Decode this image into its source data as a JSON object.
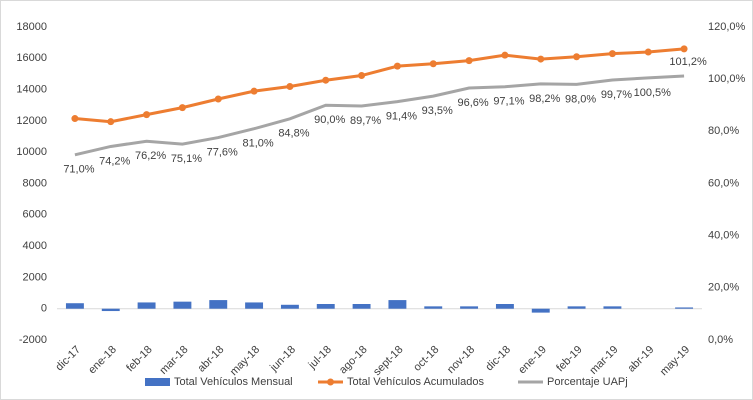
{
  "chart_data": {
    "type": "combo",
    "categories": [
      "dic-17",
      "ene-18",
      "feb-18",
      "mar-18",
      "abr-18",
      "may-18",
      "jun-18",
      "jul-18",
      "ago-18",
      "sept-18",
      "oct-18",
      "nov-18",
      "dic-18",
      "ene-19",
      "feb-19",
      "mar-19",
      "abr-19",
      "may-19"
    ],
    "series": [
      {
        "name": "Total Vehículos Mensual",
        "type": "bar",
        "color": "#4472c4",
        "values": [
          350,
          -150,
          400,
          450,
          550,
          400,
          250,
          300,
          300,
          550,
          150,
          150,
          300,
          -250,
          150,
          150,
          0,
          80
        ]
      },
      {
        "name": "Total Vehículos Acumulados",
        "type": "line",
        "marker": true,
        "color": "#ed7d31",
        "values": [
          12150,
          11950,
          12400,
          12850,
          13400,
          13900,
          14200,
          14600,
          14900,
          15500,
          15650,
          15850,
          16200,
          15950,
          16100,
          16300,
          16400,
          16600
        ]
      },
      {
        "name": "Porcentaje UAPj",
        "type": "line",
        "marker": false,
        "axis": "y2",
        "color": "#a5a5a5",
        "values": [
          71.0,
          74.2,
          76.2,
          75.1,
          77.6,
          81.0,
          84.8,
          90.0,
          89.7,
          91.4,
          93.5,
          96.6,
          97.1,
          98.2,
          98.0,
          99.7,
          100.5,
          101.2
        ],
        "value_labels": [
          "71,0%",
          "74,2%",
          "76,2%",
          "75,1%",
          "77,6%",
          "81,0%",
          "84,8%",
          "90,0%",
          "89,7%",
          "91,4%",
          "93,5%",
          "96,6%",
          "97,1%",
          "98,2%",
          "98,0%",
          "99,7%",
          "100,5%",
          "101,2%"
        ]
      }
    ],
    "ylim": [
      -2000,
      18000
    ],
    "yticks": [
      -2000,
      0,
      2000,
      4000,
      6000,
      8000,
      10000,
      12000,
      14000,
      16000,
      18000
    ],
    "y2lim": [
      0,
      120
    ],
    "y2ticks": [
      {
        "value": 0,
        "label": "0,0%"
      },
      {
        "value": 20,
        "label": "20,0%"
      },
      {
        "value": 40,
        "label": "40,0%"
      },
      {
        "value": 60,
        "label": "60,0%"
      },
      {
        "value": 80,
        "label": "80,0%"
      },
      {
        "value": 100,
        "label": "100,0%"
      },
      {
        "value": 120,
        "label": "120,0%"
      }
    ],
    "grid": false,
    "legend": "bottom"
  }
}
